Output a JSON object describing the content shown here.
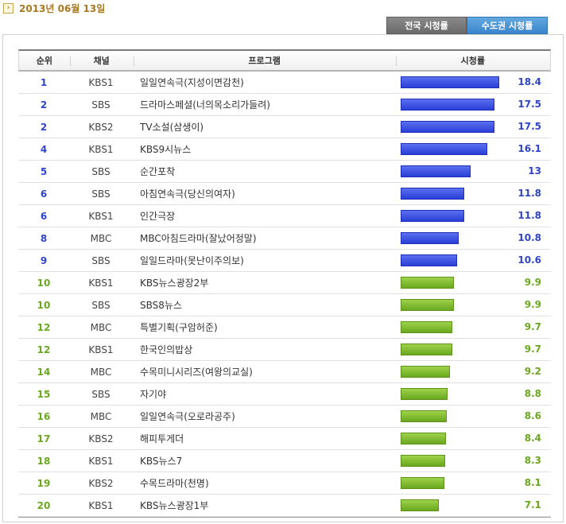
{
  "date": "2013년 06월 13일",
  "tabs": {
    "national": "전국 시청률",
    "capital": "수도권 시청률"
  },
  "columns": {
    "rank": "순위",
    "channel": "채널",
    "program": "프로그램",
    "rating": "시청률"
  },
  "colors": {
    "top_bar": "#2a3fd6",
    "rest_bar": "#6aa81f",
    "date": "#a8791f"
  },
  "max_rating": 18.4,
  "rows": [
    {
      "rank": "1",
      "channel": "KBS1",
      "program": "일일연속극(지성이면감천)",
      "rating": "18.4",
      "value": 18.4,
      "color": "blue"
    },
    {
      "rank": "2",
      "channel": "SBS",
      "program": "드라마스페셜(너의목소리가들려)",
      "rating": "17.5",
      "value": 17.5,
      "color": "blue"
    },
    {
      "rank": "2",
      "channel": "KBS2",
      "program": "TV소설(삼생이)",
      "rating": "17.5",
      "value": 17.5,
      "color": "blue"
    },
    {
      "rank": "4",
      "channel": "KBS1",
      "program": "KBS9시뉴스",
      "rating": "16.1",
      "value": 16.1,
      "color": "blue"
    },
    {
      "rank": "5",
      "channel": "SBS",
      "program": "순간포착",
      "rating": "13",
      "value": 13,
      "color": "blue"
    },
    {
      "rank": "6",
      "channel": "SBS",
      "program": "아침연속극(당신의여자)",
      "rating": "11.8",
      "value": 11.8,
      "color": "blue"
    },
    {
      "rank": "6",
      "channel": "KBS1",
      "program": "인간극장",
      "rating": "11.8",
      "value": 11.8,
      "color": "blue"
    },
    {
      "rank": "8",
      "channel": "MBC",
      "program": "MBC아침드라마(잘났어정말)",
      "rating": "10.8",
      "value": 10.8,
      "color": "blue"
    },
    {
      "rank": "9",
      "channel": "SBS",
      "program": "일일드라마(못난이주의보)",
      "rating": "10.6",
      "value": 10.6,
      "color": "blue"
    },
    {
      "rank": "10",
      "channel": "KBS1",
      "program": "KBS뉴스광장2부",
      "rating": "9.9",
      "value": 9.9,
      "color": "green"
    },
    {
      "rank": "10",
      "channel": "SBS",
      "program": "SBS8뉴스",
      "rating": "9.9",
      "value": 9.9,
      "color": "green"
    },
    {
      "rank": "12",
      "channel": "MBC",
      "program": "특별기획(구암허준)",
      "rating": "9.7",
      "value": 9.7,
      "color": "green"
    },
    {
      "rank": "12",
      "channel": "KBS1",
      "program": "한국인의밥상",
      "rating": "9.7",
      "value": 9.7,
      "color": "green"
    },
    {
      "rank": "14",
      "channel": "MBC",
      "program": "수목미니시리즈(여왕의교실)",
      "rating": "9.2",
      "value": 9.2,
      "color": "green"
    },
    {
      "rank": "15",
      "channel": "SBS",
      "program": "자기야",
      "rating": "8.8",
      "value": 8.8,
      "color": "green"
    },
    {
      "rank": "16",
      "channel": "MBC",
      "program": "일일연속극(오로라공주)",
      "rating": "8.6",
      "value": 8.6,
      "color": "green"
    },
    {
      "rank": "17",
      "channel": "KBS2",
      "program": "해피투게더",
      "rating": "8.4",
      "value": 8.4,
      "color": "green"
    },
    {
      "rank": "18",
      "channel": "KBS1",
      "program": "KBS뉴스7",
      "rating": "8.3",
      "value": 8.3,
      "color": "green"
    },
    {
      "rank": "19",
      "channel": "KBS2",
      "program": "수목드라마(천명)",
      "rating": "8.1",
      "value": 8.1,
      "color": "green"
    },
    {
      "rank": "20",
      "channel": "KBS1",
      "program": "KBS뉴스광장1부",
      "rating": "7.1",
      "value": 7.1,
      "color": "green"
    }
  ]
}
